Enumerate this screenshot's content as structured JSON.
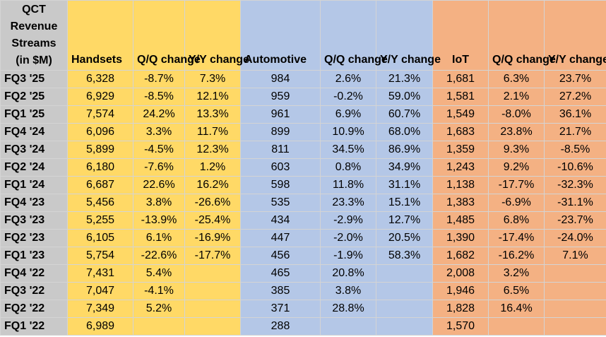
{
  "table": {
    "header": {
      "row_label": "QCT Revenue Streams (in $M)",
      "handsets": "Handsets",
      "handsets_qq": "Q/Q change",
      "handsets_yy": "Y/Y change",
      "automotive": "Automotive",
      "automotive_qq": "Q/Q change",
      "automotive_yy": "Y/Y change",
      "iot": "IoT",
      "iot_qq": "Q/Q change",
      "iot_yy": "Y/Y change"
    },
    "rows": [
      [
        "FQ3 '25",
        "6,328",
        "-8.7%",
        "7.3%",
        "984",
        "2.6%",
        "21.3%",
        "1,681",
        "6.3%",
        "23.7%"
      ],
      [
        "FQ2 '25",
        "6,929",
        "-8.5%",
        "12.1%",
        "959",
        "-0.2%",
        "59.0%",
        "1,581",
        "2.1%",
        "27.2%"
      ],
      [
        "FQ1 '25",
        "7,574",
        "24.2%",
        "13.3%",
        "961",
        "6.9%",
        "60.7%",
        "1,549",
        "-8.0%",
        "36.1%"
      ],
      [
        "FQ4 '24",
        "6,096",
        "3.3%",
        "11.7%",
        "899",
        "10.9%",
        "68.0%",
        "1,683",
        "23.8%",
        "21.7%"
      ],
      [
        "FQ3 '24",
        "5,899",
        "-4.5%",
        "12.3%",
        "811",
        "34.5%",
        "86.9%",
        "1,359",
        "9.3%",
        "-8.5%"
      ],
      [
        "FQ2 '24",
        "6,180",
        "-7.6%",
        "1.2%",
        "603",
        "0.8%",
        "34.9%",
        "1,243",
        "9.2%",
        "-10.6%"
      ],
      [
        "FQ1 '24",
        "6,687",
        "22.6%",
        "16.2%",
        "598",
        "11.8%",
        "31.1%",
        "1,138",
        "-17.7%",
        "-32.3%"
      ],
      [
        "FQ4 '23",
        "5,456",
        "3.8%",
        "-26.6%",
        "535",
        "23.3%",
        "15.1%",
        "1,383",
        "-6.9%",
        "-31.1%"
      ],
      [
        "FQ3 '23",
        "5,255",
        "-13.9%",
        "-25.4%",
        "434",
        "-2.9%",
        "12.7%",
        "1,485",
        "6.8%",
        "-23.7%"
      ],
      [
        "FQ2 '23",
        "6,105",
        "6.1%",
        "-16.9%",
        "447",
        "-2.0%",
        "20.5%",
        "1,390",
        "-17.4%",
        "-24.0%"
      ],
      [
        "FQ1 '23",
        "5,754",
        "-22.6%",
        "-17.7%",
        "456",
        "-1.9%",
        "58.3%",
        "1,682",
        "-16.2%",
        "7.1%"
      ],
      [
        "FQ4 '22",
        "7,431",
        "5.4%",
        "",
        "465",
        "20.8%",
        "",
        "2,008",
        "3.2%",
        ""
      ],
      [
        "FQ3 '22",
        "7,047",
        "-4.1%",
        "",
        "385",
        "3.8%",
        "",
        "1,946",
        "6.5%",
        ""
      ],
      [
        "FQ2 '22",
        "7,349",
        "5.2%",
        "",
        "371",
        "28.8%",
        "",
        "1,828",
        "16.4%",
        ""
      ],
      [
        "FQ1 '22",
        "6,989",
        "",
        "",
        "288",
        "",
        "",
        "1,570",
        "",
        ""
      ]
    ]
  },
  "colors": {
    "label_col": "#c9c9c9",
    "handsets": "#ffd966",
    "automotive": "#b4c7e7",
    "iot": "#f4b183"
  },
  "chart_data": {
    "type": "table",
    "columns": [
      "QCT Revenue Streams (in $M)",
      "Handsets",
      "Q/Q change",
      "Y/Y change",
      "Automotive",
      "Q/Q change",
      "Y/Y change",
      "IoT",
      "Q/Q change",
      "Y/Y change"
    ],
    "categories": [
      "FQ3 '25",
      "FQ2 '25",
      "FQ1 '25",
      "FQ4 '24",
      "FQ3 '24",
      "FQ2 '24",
      "FQ1 '24",
      "FQ4 '23",
      "FQ3 '23",
      "FQ2 '23",
      "FQ1 '23",
      "FQ4 '22",
      "FQ3 '22",
      "FQ2 '22",
      "FQ1 '22"
    ],
    "series": [
      {
        "name": "Handsets",
        "values": [
          6328,
          6929,
          7574,
          6096,
          5899,
          6180,
          6687,
          5456,
          5255,
          6105,
          5754,
          7431,
          7047,
          7349,
          6989
        ]
      },
      {
        "name": "Automotive",
        "values": [
          984,
          959,
          961,
          899,
          811,
          603,
          598,
          535,
          434,
          447,
          456,
          465,
          385,
          371,
          288
        ]
      },
      {
        "name": "IoT",
        "values": [
          1681,
          1581,
          1549,
          1683,
          1359,
          1243,
          1138,
          1383,
          1485,
          1390,
          1682,
          2008,
          1946,
          1828,
          1570
        ]
      }
    ]
  }
}
